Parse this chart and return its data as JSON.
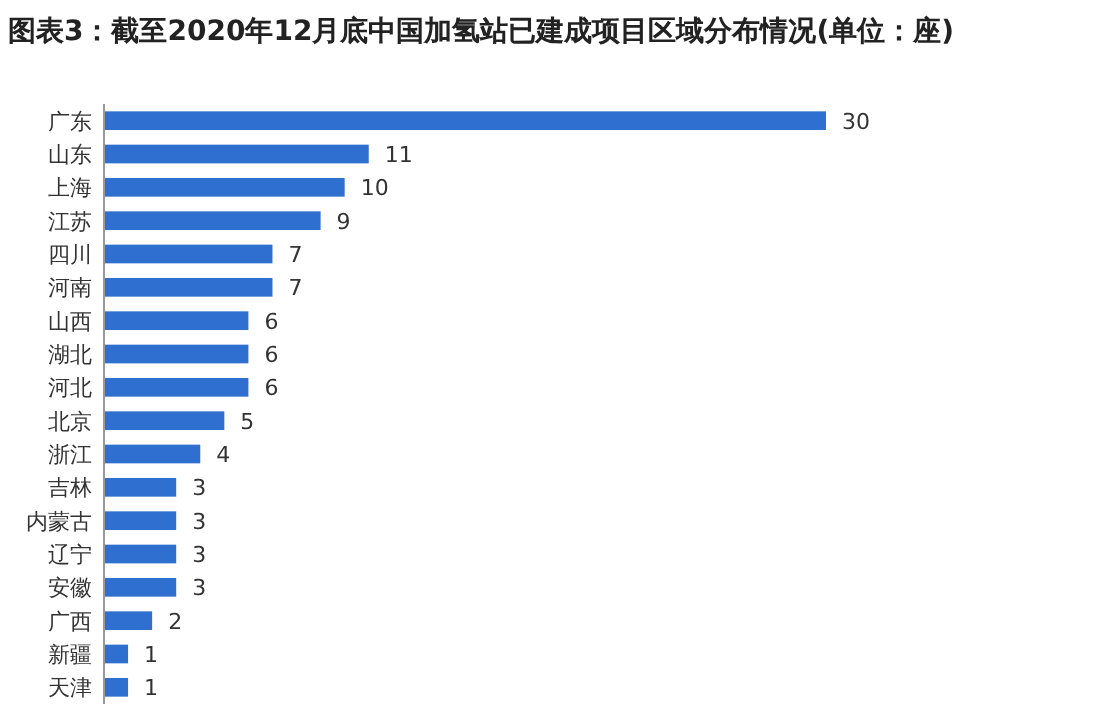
{
  "chart_data": {
    "type": "bar",
    "orientation": "horizontal",
    "title": "图表3：截至2020年12月底中国加氢站已建成项目区域分布情况(单位：座)",
    "categories": [
      "广东",
      "山东",
      "上海",
      "江苏",
      "四川",
      "河南",
      "山西",
      "湖北",
      "河北",
      "北京",
      "浙江",
      "吉林",
      "内蒙古",
      "辽宁",
      "安徽",
      "广西",
      "新疆",
      "天津"
    ],
    "values": [
      30,
      11,
      10,
      9,
      7,
      7,
      6,
      6,
      6,
      5,
      4,
      3,
      3,
      3,
      3,
      2,
      1,
      1
    ],
    "color": "#2f6fd0",
    "data_labels": true
  }
}
